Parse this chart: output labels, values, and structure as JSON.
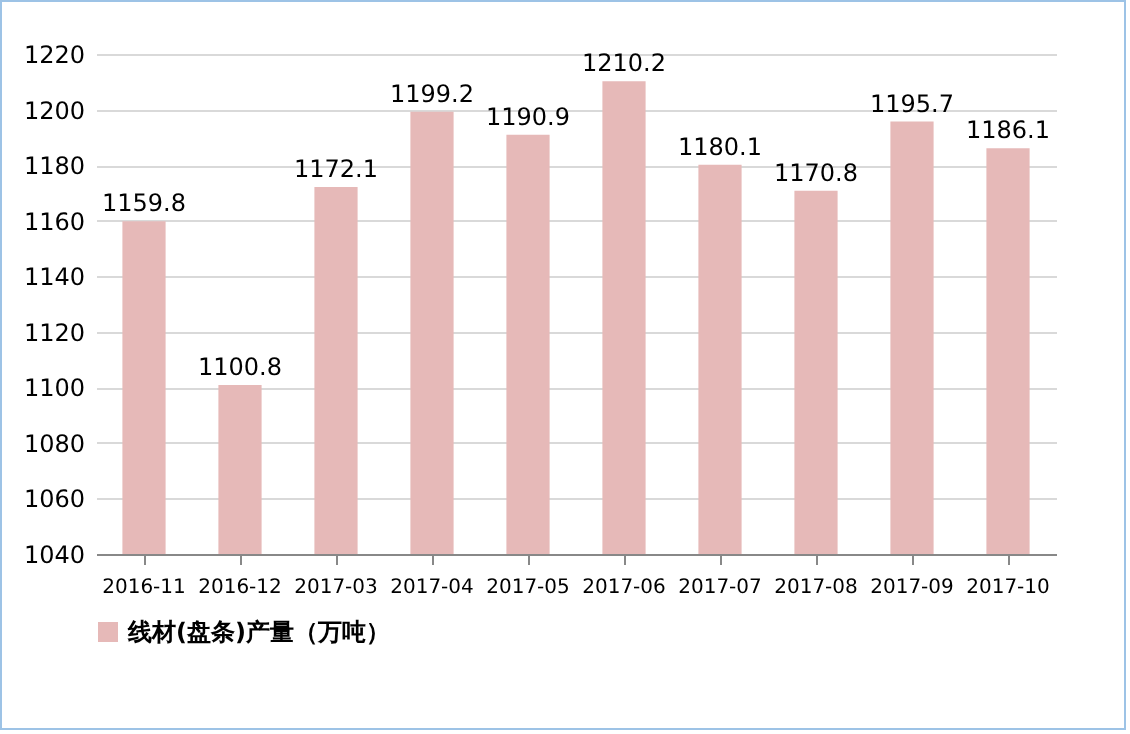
{
  "chart_data": {
    "type": "bar",
    "categories": [
      "2016-11",
      "2016-12",
      "2017-03",
      "2017-04",
      "2017-05",
      "2017-06",
      "2017-07",
      "2017-08",
      "2017-09",
      "2017-10"
    ],
    "series": [
      {
        "name": "线材(盘条)产量（万吨）",
        "color": "#e6b9b8",
        "values": [
          1159.8,
          1100.8,
          1172.1,
          1199.2,
          1190.9,
          1210.2,
          1180.1,
          1170.8,
          1195.7,
          1186.1
        ]
      }
    ],
    "ylim": [
      1040,
      1220
    ],
    "yticks": [
      1040,
      1060,
      1080,
      1100,
      1120,
      1140,
      1160,
      1180,
      1200,
      1220
    ],
    "grid": "y",
    "data_labels": true,
    "legend": "bottom left"
  }
}
